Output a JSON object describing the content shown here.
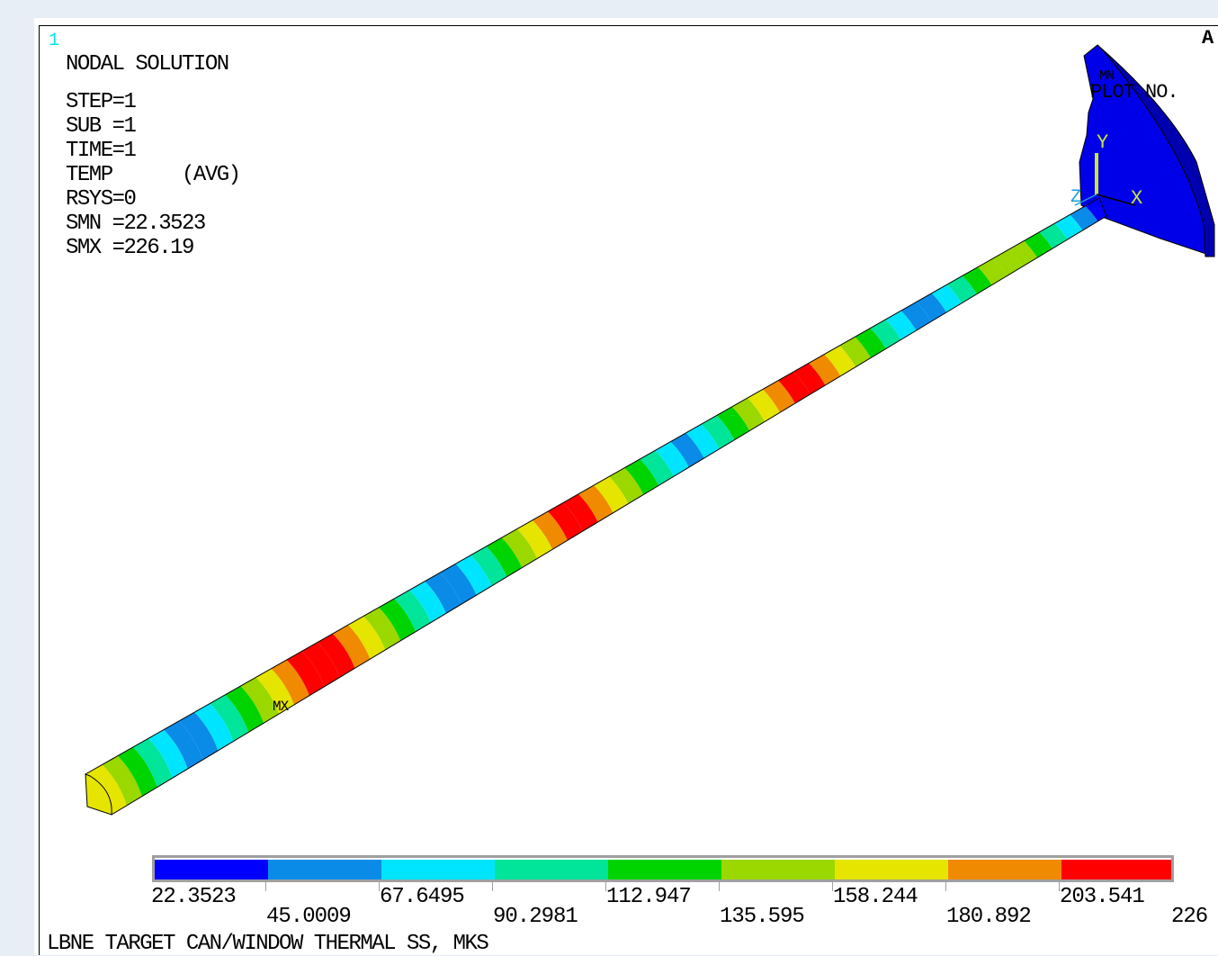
{
  "window_number": "1",
  "corner_letter": "A",
  "info": {
    "title": "NODAL SOLUTION",
    "lines": [
      "STEP=1",
      "SUB =1",
      "TIME=1",
      "TEMP      (AVG)",
      "RSYS=0",
      "SMN =22.3523",
      "SMX =226.19"
    ]
  },
  "plot_no": "PLOT NO.",
  "markers": {
    "min": "MN",
    "max": "MX"
  },
  "axes": {
    "y": "Y",
    "x": "X",
    "z": "Z"
  },
  "legend": {
    "labels": [
      "22.3523",
      "45.0009",
      "67.6495",
      "90.2981",
      "112.947",
      "135.595",
      "158.244",
      "180.892",
      "203.541",
      "226"
    ],
    "colors": [
      "#0000ff",
      "#0b8be8",
      "#00e5ff",
      "#00e59a",
      "#00d400",
      "#9ad800",
      "#e5e500",
      "#f08a00",
      "#ff0000"
    ]
  },
  "caption": "LBNE TARGET CAN/WINDOW THERMAL SS, MKS"
}
